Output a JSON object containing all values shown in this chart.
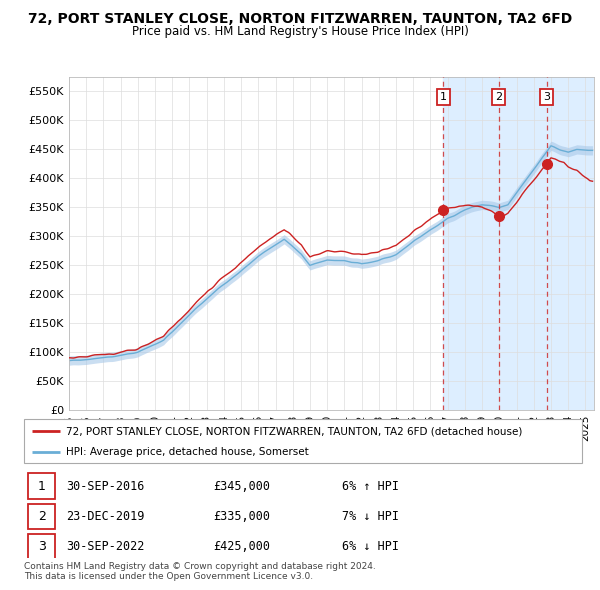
{
  "title": "72, PORT STANLEY CLOSE, NORTON FITZWARREN, TAUNTON, TA2 6FD",
  "subtitle": "Price paid vs. HM Land Registry's House Price Index (HPI)",
  "ylabel_ticks": [
    "£0",
    "£50K",
    "£100K",
    "£150K",
    "£200K",
    "£250K",
    "£300K",
    "£350K",
    "£400K",
    "£450K",
    "£500K",
    "£550K"
  ],
  "ytick_values": [
    0,
    50000,
    100000,
    150000,
    200000,
    250000,
    300000,
    350000,
    400000,
    450000,
    500000,
    550000
  ],
  "ylim": [
    0,
    575000
  ],
  "xlim_start": 1995,
  "xlim_end": 2025.5,
  "hpi_color": "#a8c8e8",
  "hpi_line_color": "#6aaed6",
  "price_color": "#cc2222",
  "shading_color": "#ddeeff",
  "legend_house": "72, PORT STANLEY CLOSE, NORTON FITZWARREN, TAUNTON, TA2 6FD (detached house)",
  "legend_hpi": "HPI: Average price, detached house, Somerset",
  "transactions": [
    {
      "date": "30-SEP-2016",
      "price": 345000,
      "hpi_diff": "6% ↑ HPI",
      "label": "1",
      "x": 2016.75
    },
    {
      "date": "23-DEC-2019",
      "price": 335000,
      "hpi_diff": "7% ↓ HPI",
      "label": "2",
      "x": 2019.97
    },
    {
      "date": "30-SEP-2022",
      "price": 425000,
      "hpi_diff": "6% ↓ HPI",
      "label": "3",
      "x": 2022.75
    }
  ],
  "footer": "Contains HM Land Registry data © Crown copyright and database right 2024.\nThis data is licensed under the Open Government Licence v3.0.",
  "bg_color": "#ffffff",
  "plot_bg_color": "#ffffff",
  "grid_color": "#dddddd"
}
